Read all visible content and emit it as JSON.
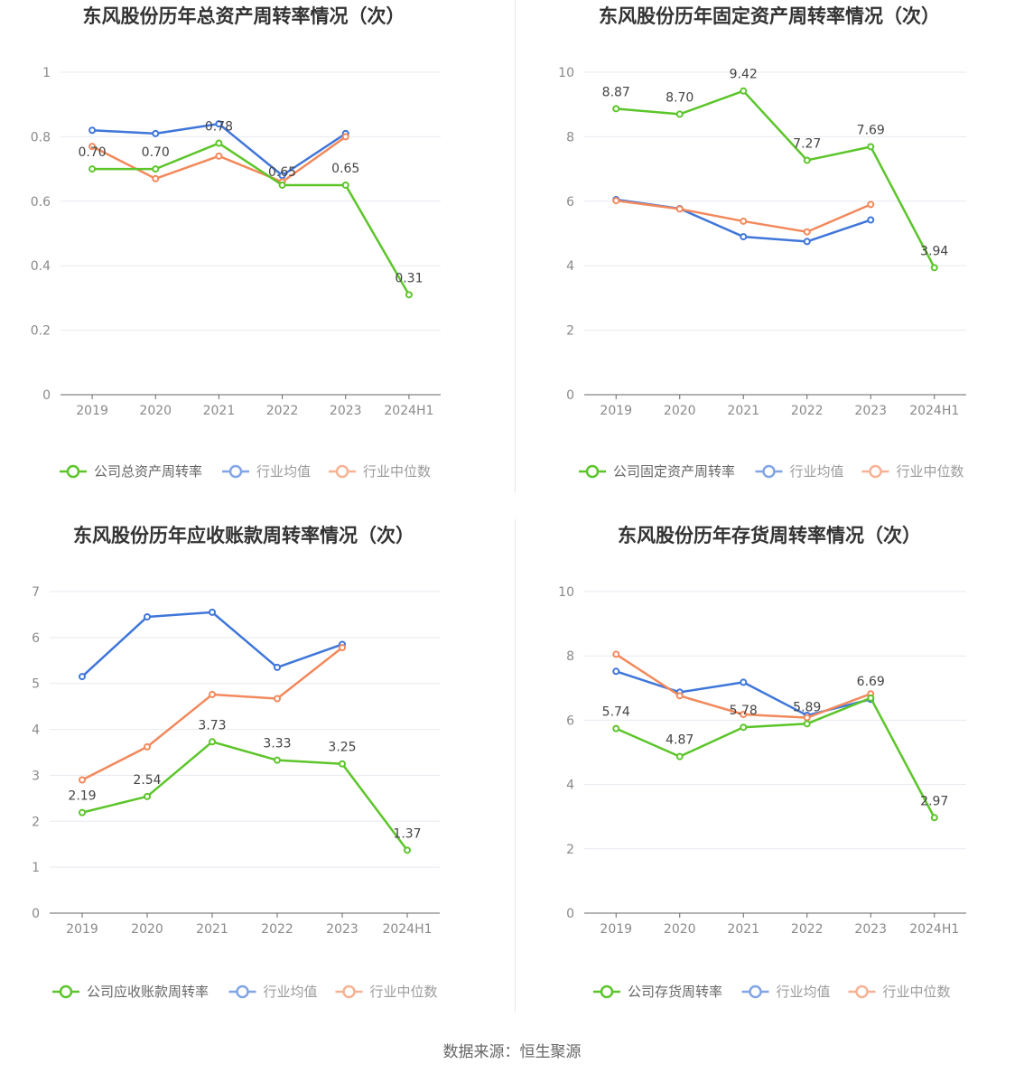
{
  "source_label": "数据来源：恒生聚源",
  "colors": {
    "company": "#5cc52a",
    "avg": "#3f76d9",
    "median": "#f2895c",
    "grid": "#e6e9f0",
    "axis": "#666666"
  },
  "chart_data": [
    {
      "type": "line",
      "title": "东风股份历年总资产周转率情况（次）",
      "categories": [
        "2019",
        "2020",
        "2021",
        "2022",
        "2023",
        "2024H1"
      ],
      "ylim": [
        0,
        1
      ],
      "yticks": [
        0,
        0.2,
        0.4,
        0.6,
        0.8,
        1
      ],
      "ytick_labels": [
        "0",
        "0.2",
        "0.4",
        "0.6",
        "0.8",
        "1"
      ],
      "legend": [
        "公司总资产周转率",
        "行业均值",
        "行业中位数"
      ],
      "series": [
        {
          "name": "公司总资产周转率",
          "role": "company",
          "values": [
            0.7,
            0.7,
            0.78,
            0.65,
            0.65,
            0.31
          ],
          "labels": [
            "0.70",
            "0.70",
            "0.78",
            "0.65",
            "0.65",
            "0.31"
          ]
        },
        {
          "name": "行业均值",
          "role": "avg",
          "values": [
            0.82,
            0.81,
            0.84,
            0.68,
            0.81,
            null
          ]
        },
        {
          "name": "行业中位数",
          "role": "median",
          "values": [
            0.77,
            0.67,
            0.74,
            0.66,
            0.8,
            null
          ]
        }
      ]
    },
    {
      "type": "line",
      "title": "东风股份历年固定资产周转率情况（次）",
      "categories": [
        "2019",
        "2020",
        "2021",
        "2022",
        "2023",
        "2024H1"
      ],
      "ylim": [
        0,
        10
      ],
      "yticks": [
        0,
        2,
        4,
        6,
        8,
        10
      ],
      "ytick_labels": [
        "0",
        "2",
        "4",
        "6",
        "8",
        "10"
      ],
      "legend": [
        "公司固定资产周转率",
        "行业均值",
        "行业中位数"
      ],
      "series": [
        {
          "name": "公司固定资产周转率",
          "role": "company",
          "values": [
            8.87,
            8.7,
            9.42,
            7.27,
            7.69,
            3.94
          ],
          "labels": [
            "8.87",
            "8.70",
            "9.42",
            "7.27",
            "7.69",
            "3.94"
          ]
        },
        {
          "name": "行业均值",
          "role": "avg",
          "values": [
            6.05,
            5.77,
            4.9,
            4.75,
            5.42,
            null
          ]
        },
        {
          "name": "行业中位数",
          "role": "median",
          "values": [
            6.02,
            5.76,
            5.38,
            5.05,
            5.9,
            null
          ]
        }
      ]
    },
    {
      "type": "line",
      "title": "东风股份历年应收账款周转率情况（次）",
      "categories": [
        "2019",
        "2020",
        "2021",
        "2022",
        "2023",
        "2024H1"
      ],
      "ylim": [
        0,
        7
      ],
      "yticks": [
        0,
        1,
        2,
        3,
        4,
        5,
        6,
        7
      ],
      "ytick_labels": [
        "0",
        "1",
        "2",
        "3",
        "4",
        "5",
        "6",
        "7"
      ],
      "legend": [
        "公司应收账款周转率",
        "行业均值",
        "行业中位数"
      ],
      "series": [
        {
          "name": "公司应收账款周转率",
          "role": "company",
          "values": [
            2.19,
            2.54,
            3.73,
            3.33,
            3.25,
            1.37
          ],
          "labels": [
            "2.19",
            "2.54",
            "3.73",
            "3.33",
            "3.25",
            "1.37"
          ]
        },
        {
          "name": "行业均值",
          "role": "avg",
          "values": [
            5.15,
            6.45,
            6.55,
            5.35,
            5.85,
            null
          ]
        },
        {
          "name": "行业中位数",
          "role": "median",
          "values": [
            2.9,
            3.62,
            4.76,
            4.67,
            5.78,
            null
          ]
        }
      ]
    },
    {
      "type": "line",
      "title": "东风股份历年存货周转率情况（次）",
      "categories": [
        "2019",
        "2020",
        "2021",
        "2022",
        "2023",
        "2024H1"
      ],
      "ylim": [
        0,
        10
      ],
      "yticks": [
        0,
        2,
        4,
        6,
        8,
        10
      ],
      "ytick_labels": [
        "0",
        "2",
        "4",
        "6",
        "8",
        "10"
      ],
      "legend": [
        "公司存货周转率",
        "行业均值",
        "行业中位数"
      ],
      "series": [
        {
          "name": "公司存货周转率",
          "role": "company",
          "values": [
            5.74,
            4.87,
            5.78,
            5.89,
            6.69,
            2.97
          ],
          "labels": [
            "5.74",
            "4.87",
            "5.78",
            "5.89",
            "6.69",
            "2.97"
          ]
        },
        {
          "name": "行业均值",
          "role": "avg",
          "values": [
            7.52,
            6.87,
            7.18,
            6.15,
            6.65,
            null
          ]
        },
        {
          "name": "行业中位数",
          "role": "median",
          "values": [
            8.05,
            6.76,
            6.18,
            6.08,
            6.82,
            null
          ]
        }
      ]
    }
  ]
}
